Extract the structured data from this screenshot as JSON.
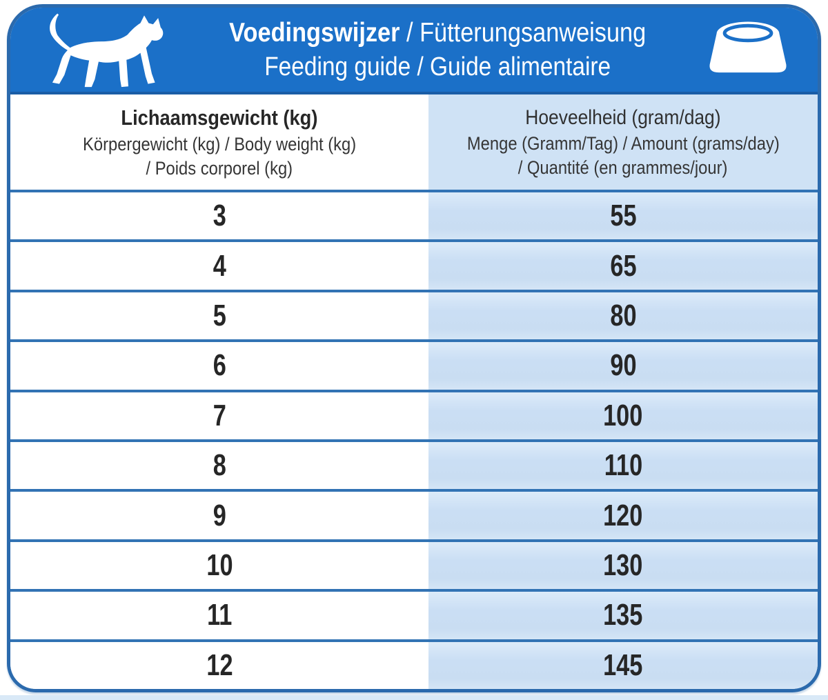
{
  "header": {
    "title_line1_bold": "Voedingswijzer",
    "title_line1_rest": " / Fütterungsanweisung",
    "title_line2": "Feeding guide / Guide alimentaire",
    "cat_icon": "cat-silhouette",
    "bowl_icon": "pet-food-bowl"
  },
  "colors": {
    "header_blue": "#1b70c8",
    "border_blue": "#2b6aad",
    "row_line_blue": "#3273b4",
    "light_blue_cell": "#cde1f4",
    "text_dark": "#272727",
    "icon_white": "#ffffff"
  },
  "table": {
    "columns": [
      {
        "title": "Lichaamsgewicht (kg)",
        "subtitle_line1": "Körpergewicht (kg) / Body weight (kg)",
        "subtitle_line2": "/ Poids corporel (kg)"
      },
      {
        "title": "Hoeveelheid (gram/dag)",
        "subtitle_line1": "Menge (Gramm/Tag) / Amount (grams/day)",
        "subtitle_line2": "/ Quantité (en grammes/jour)"
      }
    ],
    "rows": [
      {
        "weight": "3",
        "amount": "55"
      },
      {
        "weight": "4",
        "amount": "65"
      },
      {
        "weight": "5",
        "amount": "80"
      },
      {
        "weight": "6",
        "amount": "90"
      },
      {
        "weight": "7",
        "amount": "100"
      },
      {
        "weight": "8",
        "amount": "110"
      },
      {
        "weight": "9",
        "amount": "120"
      },
      {
        "weight": "10",
        "amount": "130"
      },
      {
        "weight": "11",
        "amount": "135"
      },
      {
        "weight": "12",
        "amount": "145"
      }
    ]
  },
  "chart_data": {
    "type": "table",
    "title": "Voedingswijzer / Fütterungsanweisung — Feeding guide / Guide alimentaire",
    "columns": [
      "Body weight (kg)",
      "Amount (grams/day)"
    ],
    "x": [
      3,
      4,
      5,
      6,
      7,
      8,
      9,
      10,
      11,
      12
    ],
    "values": [
      55,
      65,
      80,
      90,
      100,
      110,
      120,
      130,
      135,
      145
    ]
  }
}
